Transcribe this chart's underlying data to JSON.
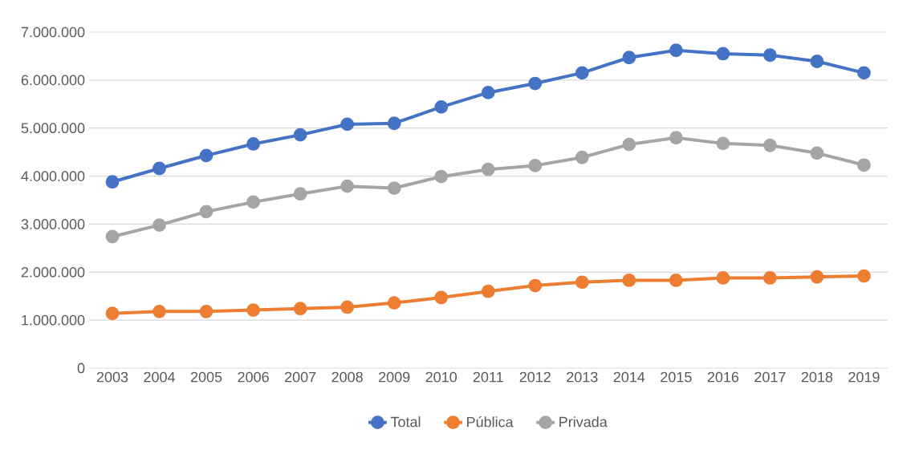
{
  "chart_data": {
    "type": "line",
    "categories": [
      "2003",
      "2004",
      "2005",
      "2006",
      "2007",
      "2008",
      "2009",
      "2010",
      "2011",
      "2012",
      "2013",
      "2014",
      "2015",
      "2016",
      "2017",
      "2018",
      "2019"
    ],
    "series": [
      {
        "name": "Total",
        "color": "#4472c4",
        "values": [
          3880000,
          4160000,
          4430000,
          4670000,
          4860000,
          5080000,
          5100000,
          5440000,
          5740000,
          5930000,
          6150000,
          6470000,
          6620000,
          6550000,
          6520000,
          6390000,
          6150000
        ]
      },
      {
        "name": "Pública",
        "color": "#ed7d31",
        "values": [
          1140000,
          1180000,
          1180000,
          1210000,
          1240000,
          1270000,
          1360000,
          1470000,
          1600000,
          1720000,
          1790000,
          1830000,
          1830000,
          1880000,
          1880000,
          1900000,
          1920000
        ]
      },
      {
        "name": "Privada",
        "color": "#a5a5a5",
        "values": [
          2740000,
          2980000,
          3260000,
          3460000,
          3630000,
          3790000,
          3750000,
          3990000,
          4140000,
          4220000,
          4390000,
          4660000,
          4800000,
          4680000,
          4640000,
          4480000,
          4230000
        ]
      }
    ],
    "ylim": [
      0,
      7000000
    ],
    "yticks": [
      0,
      {
        "value": 1000000,
        "label": "1.000.000"
      },
      {
        "value": 2000000,
        "label": "2.000.000"
      },
      {
        "value": 3000000,
        "label": "3.000.000"
      },
      {
        "value": 4000000,
        "label": "4.000.000"
      },
      {
        "value": 5000000,
        "label": "5.000.000"
      },
      {
        "value": 6000000,
        "label": "6.000.000"
      },
      {
        "value": 7000000,
        "label": "7.000.000"
      }
    ],
    "grid": "y",
    "legend": "bottom",
    "marker": "circle",
    "line_style": "solid"
  }
}
